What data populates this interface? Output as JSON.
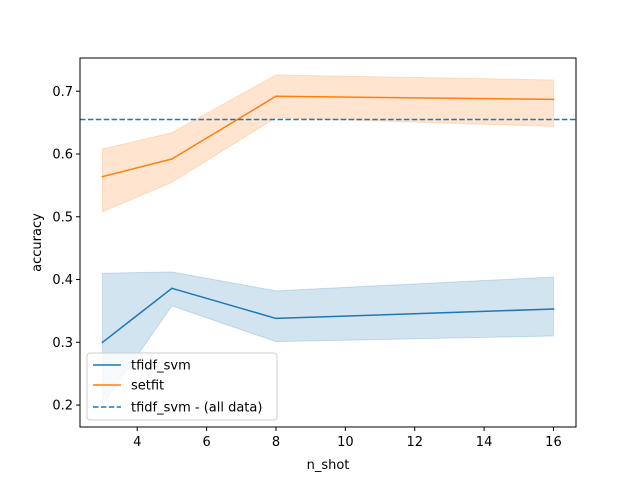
{
  "chart_data": {
    "type": "line",
    "title": "",
    "xlabel": "n_shot",
    "ylabel": "accuracy",
    "xlim": [
      2.35,
      16.65
    ],
    "ylim": [
      0.165,
      0.753
    ],
    "xticks": [
      4,
      6,
      8,
      10,
      12,
      14,
      16
    ],
    "xtick_labels": [
      "4",
      "6",
      "8",
      "10",
      "12",
      "14",
      "16"
    ],
    "yticks": [
      0.2,
      0.3,
      0.4,
      0.5,
      0.6,
      0.7
    ],
    "ytick_labels": [
      "0.2",
      "0.3",
      "0.4",
      "0.5",
      "0.6",
      "0.7"
    ],
    "grid": false,
    "legend_position": "lower-left",
    "series": [
      {
        "name": "tfidf_svm",
        "style": "solid",
        "color": "#1f77b4",
        "x": [
          3,
          5,
          8,
          16
        ],
        "y": [
          0.3,
          0.386,
          0.338,
          0.353
        ],
        "band_lower": [
          0.2,
          0.358,
          0.301,
          0.31
        ],
        "band_upper": [
          0.41,
          0.412,
          0.382,
          0.404
        ]
      },
      {
        "name": "setfit",
        "style": "solid",
        "color": "#ff7f0e",
        "x": [
          3,
          5,
          8,
          16
        ],
        "y": [
          0.564,
          0.592,
          0.692,
          0.687
        ],
        "band_lower": [
          0.508,
          0.555,
          0.658,
          0.644
        ],
        "band_upper": [
          0.608,
          0.634,
          0.726,
          0.718
        ]
      },
      {
        "name": "tfidf_svm - (all data)",
        "style": "dashed",
        "color": "#1f77b4",
        "hline": 0.655
      }
    ]
  }
}
